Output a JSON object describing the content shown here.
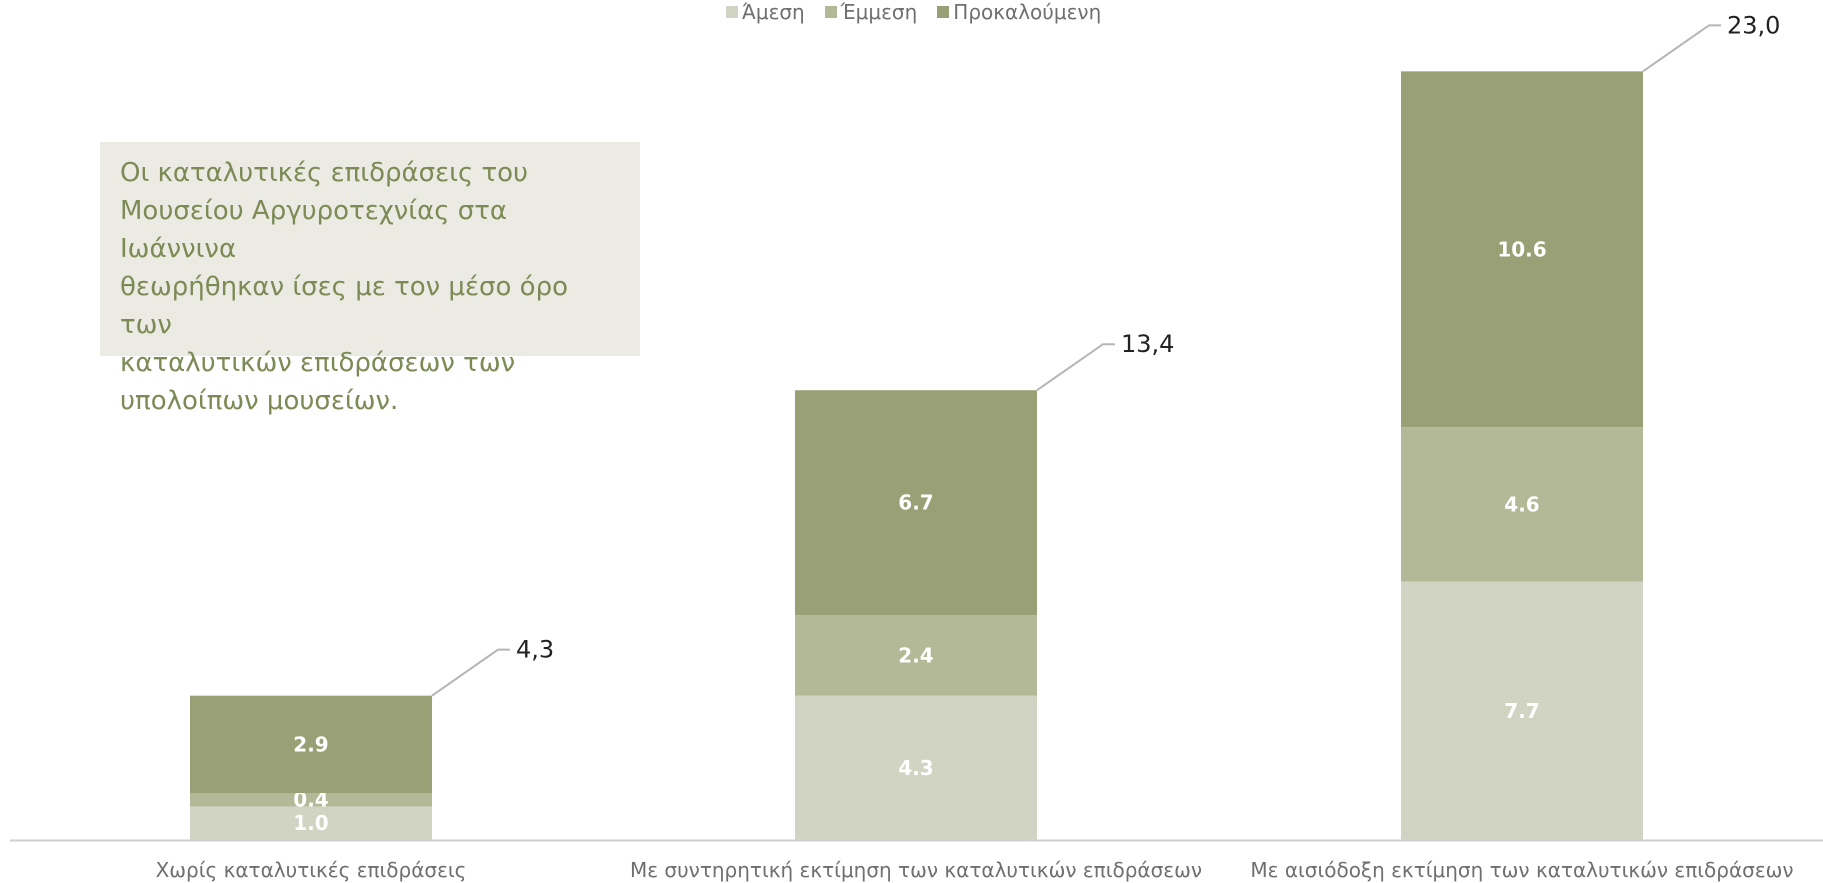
{
  "chart_data": {
    "type": "bar",
    "stacked": true,
    "categories": [
      "Χωρίς καταλυτικές επιδράσεις",
      "Με συντηρητική εκτίμηση των καταλυτικών επιδράσεων",
      "Με αισιόδοξη εκτίμηση των καταλυτικών επιδράσεων"
    ],
    "series": [
      {
        "name": "Άμεση",
        "values": [
          1.0,
          4.3,
          7.7
        ],
        "labels": [
          "1.0",
          "4.3",
          "7.7"
        ],
        "color": "#d1d4c2"
      },
      {
        "name": "Έμμεση",
        "values": [
          0.4,
          2.4,
          4.6
        ],
        "labels": [
          "0.4",
          "2.4",
          "4.6"
        ],
        "color": "#b3b897"
      },
      {
        "name": "Προκαλούμενη",
        "values": [
          2.9,
          6.7,
          10.6
        ],
        "labels": [
          "2.9",
          "6.7",
          "10.6"
        ],
        "color": "#9aa075"
      }
    ],
    "totals": [
      "4,3",
      "13,4",
      "23,0"
    ],
    "ylim": [
      0,
      23
    ],
    "legend": "top-center",
    "grid": false
  },
  "note": {
    "lines": [
      "Οι καταλυτικές επιδράσεις του",
      "Μουσείου Αργυροτεχνίας στα Ιωάννινα",
      "θεωρήθηκαν ίσες με τον μέσο όρο των",
      "καταλυτικών επιδράσεων των",
      "υπολοίπων μουσείων."
    ]
  }
}
